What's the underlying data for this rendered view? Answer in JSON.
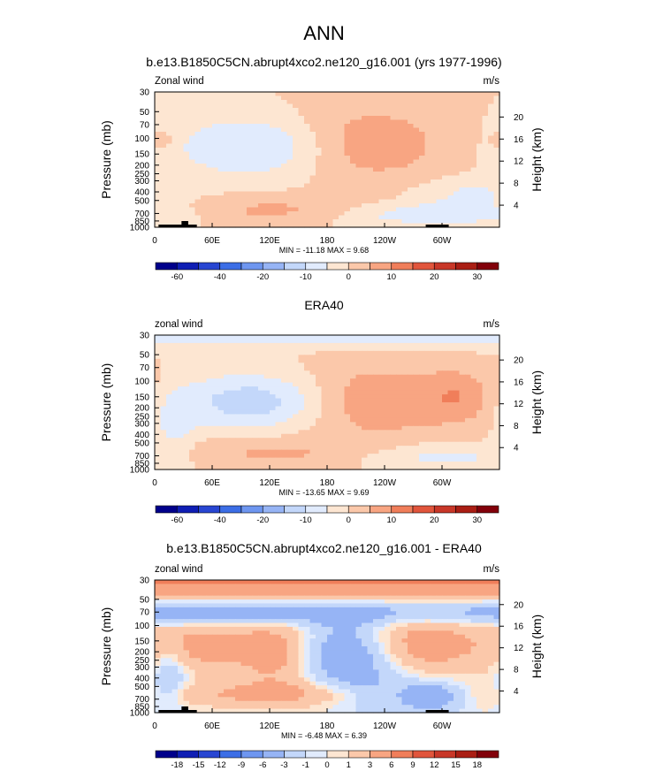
{
  "page": {
    "title": "ANN",
    "subtitle": "b.e13.B1850C5CN.abrupt4xco2.ne120_g16.001 (yrs 1977-1996)"
  },
  "chart_data": [
    {
      "type": "heatmap",
      "title": "",
      "left_label": "Zonal wind",
      "units": "m/s",
      "ylabel": "Pressure (mb)",
      "ylabel_right": "Height (km)",
      "pressure_ticks": [
        "30",
        "50",
        "70",
        "100",
        "150",
        "200",
        "250",
        "300",
        "400",
        "500",
        "700",
        "850",
        "1000"
      ],
      "height_ticks": [
        "20",
        "16",
        "12",
        "8",
        "4"
      ],
      "lon_ticks": [
        "0",
        "60E",
        "120E",
        "180",
        "120W",
        "60W"
      ],
      "minmax": "MIN = -11.18  MAX =   9.68",
      "topography": true,
      "contour_levels": [
        -70,
        -60,
        -50,
        -40,
        -30,
        -20,
        -15,
        -10,
        -5,
        0,
        5,
        10,
        15,
        20,
        25,
        30,
        35
      ],
      "colorbar_labels": [
        {
          "label": "-60",
          "index": 1
        },
        {
          "label": "-40",
          "index": 3
        },
        {
          "label": "-20",
          "index": 5
        },
        {
          "label": "-10",
          "index": 7
        },
        {
          "label": "0",
          "index": 9
        },
        {
          "label": "10",
          "index": 11
        },
        {
          "label": "20",
          "index": 13
        },
        {
          "label": "30",
          "index": 15
        }
      ],
      "blobs": [
        {
          "lon": 108,
          "p": 125,
          "dlon": 62,
          "dlogp": 0.24,
          "amp": -11.2
        },
        {
          "lon": 220,
          "p": 115,
          "dlon": 58,
          "dlogp": 0.3,
          "amp": 9.7
        },
        {
          "lon": 125,
          "p": 650,
          "dlon": 70,
          "dlogp": 0.11,
          "amp": 6.5
        },
        {
          "lon": 290,
          "p": 720,
          "dlon": 75,
          "dlogp": 0.09,
          "amp": -9.0
        },
        {
          "lon": 330,
          "p": 420,
          "dlon": 40,
          "dlogp": 0.12,
          "amp": -6.0
        },
        {
          "lon": 8,
          "p": 105,
          "dlon": 10,
          "dlogp": 0.08,
          "amp": 5.0
        }
      ]
    },
    {
      "type": "heatmap",
      "title": "ERA40",
      "left_label": "zonal wind",
      "units": "m/s",
      "ylabel": "Pressure (mb)",
      "ylabel_right": "Height (km)",
      "pressure_ticks": [
        "30",
        "50",
        "70",
        "100",
        "150",
        "200",
        "250",
        "300",
        "400",
        "500",
        "700",
        "850",
        "1000"
      ],
      "height_ticks": [
        "20",
        "16",
        "12",
        "8",
        "4"
      ],
      "lon_ticks": [
        "0",
        "60E",
        "120E",
        "180",
        "120W",
        "60W"
      ],
      "minmax": "MIN = -13.65  MAX =   9.69",
      "topography": false,
      "contour_levels": [
        -70,
        -60,
        -50,
        -40,
        -30,
        -20,
        -15,
        -10,
        -5,
        0,
        5,
        10,
        15,
        20,
        25,
        30,
        35
      ],
      "colorbar_labels": [
        {
          "label": "-60",
          "index": 1
        },
        {
          "label": "-40",
          "index": 3
        },
        {
          "label": "-20",
          "index": 5
        },
        {
          "label": "-10",
          "index": 7
        },
        {
          "label": "0",
          "index": 9
        },
        {
          "label": "10",
          "index": 11
        },
        {
          "label": "20",
          "index": 13
        },
        {
          "label": "30",
          "index": 15
        }
      ],
      "blobs": [
        {
          "lon": 105,
          "p": 170,
          "dlon": 58,
          "dlogp": 0.22,
          "amp": -13.6
        },
        {
          "lon": 225,
          "p": 170,
          "dlon": 55,
          "dlogp": 0.3,
          "amp": 9.7
        },
        {
          "lon": 320,
          "p": 150,
          "dlon": 28,
          "dlogp": 0.22,
          "amp": 8.5
        },
        {
          "lon": 120,
          "p": 650,
          "dlon": 70,
          "dlogp": 0.12,
          "amp": 6.0
        },
        {
          "lon": 300,
          "p": 720,
          "dlon": 60,
          "dlogp": 0.1,
          "amp": -7.0
        },
        {
          "lon": 180,
          "p": 30,
          "dlon": 2000,
          "dlogp": 0.09,
          "amp": -9.0
        },
        {
          "lon": 20,
          "p": 300,
          "dlon": 15,
          "dlogp": 0.25,
          "amp": -6.0
        }
      ]
    },
    {
      "type": "heatmap",
      "title": "b.e13.B1850C5CN.abrupt4xco2.ne120_g16.001 - ERA40",
      "left_label": "zonal wind",
      "units": "m/s",
      "ylabel": "Pressure (mb)",
      "ylabel_right": "Height (km)",
      "pressure_ticks": [
        "30",
        "50",
        "70",
        "100",
        "150",
        "200",
        "250",
        "300",
        "400",
        "500",
        "700",
        "850",
        "1000"
      ],
      "height_ticks": [
        "20",
        "16",
        "12",
        "8",
        "4"
      ],
      "lon_ticks": [
        "0",
        "60E",
        "120E",
        "180",
        "120W",
        "60W"
      ],
      "minmax": "MIN =  -6.48  MAX =   6.39",
      "topography": true,
      "contour_levels": [
        -21,
        -18,
        -15,
        -12,
        -9,
        -6,
        -3,
        -1,
        0,
        1,
        3,
        6,
        9,
        12,
        15,
        18,
        21
      ],
      "colorbar_labels": [
        {
          "label": "-18",
          "index": 1
        },
        {
          "label": "-15",
          "index": 2
        },
        {
          "label": "-12",
          "index": 3
        },
        {
          "label": "-9",
          "index": 4
        },
        {
          "label": "-6",
          "index": 5
        },
        {
          "label": "-3",
          "index": 6
        },
        {
          "label": "-1",
          "index": 7
        },
        {
          "label": "0",
          "index": 8
        },
        {
          "label": "1",
          "index": 9
        },
        {
          "label": "3",
          "index": 10
        },
        {
          "label": "6",
          "index": 11
        },
        {
          "label": "9",
          "index": 12
        },
        {
          "label": "12",
          "index": 13
        },
        {
          "label": "15",
          "index": 14
        },
        {
          "label": "18",
          "index": 15
        }
      ],
      "blobs": [
        {
          "lon": 180,
          "p": 30,
          "dlon": 2000,
          "dlogp": 0.16,
          "amp": 6.2
        },
        {
          "lon": 90,
          "p": 70,
          "dlon": 80,
          "dlogp": 0.1,
          "amp": -5.5
        },
        {
          "lon": 270,
          "p": 70,
          "dlon": 80,
          "dlogp": 0.1,
          "amp": -4.0
        },
        {
          "lon": 200,
          "p": 215,
          "dlon": 34,
          "dlogp": 0.28,
          "amp": -6.48
        },
        {
          "lon": 55,
          "p": 170,
          "dlon": 40,
          "dlogp": 0.2,
          "amp": 4.0
        },
        {
          "lon": 130,
          "p": 210,
          "dlon": 30,
          "dlogp": 0.3,
          "amp": 4.0
        },
        {
          "lon": 280,
          "p": 160,
          "dlon": 50,
          "dlogp": 0.26,
          "amp": 4.5
        },
        {
          "lon": 290,
          "p": 650,
          "dlon": 22,
          "dlogp": 0.12,
          "amp": -5.5
        },
        {
          "lon": 120,
          "p": 620,
          "dlon": 80,
          "dlogp": 0.1,
          "amp": 3.5
        },
        {
          "lon": 15,
          "p": 400,
          "dlon": 12,
          "dlogp": 0.25,
          "amp": -3.5
        },
        {
          "lon": 240,
          "p": 600,
          "dlon": 30,
          "dlogp": 0.2,
          "amp": -2.5
        }
      ]
    }
  ],
  "colors": {
    "fill": [
      "#00008b",
      "#0f1eb4",
      "#2846d2",
      "#3c6ee6",
      "#6e96f0",
      "#96b4f5",
      "#c3d7fa",
      "#e1ebfd",
      "#fde6d2",
      "#fbc8aa",
      "#f8a582",
      "#f07e5a",
      "#e1553c",
      "#c83728",
      "#aa1e14",
      "#82000a"
    ]
  }
}
